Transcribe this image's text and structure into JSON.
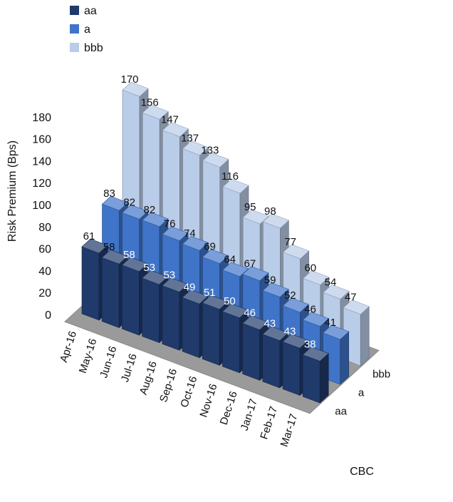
{
  "chart_data": {
    "type": "bar",
    "subtype": "3d-column",
    "title": "",
    "ylabel": "Risk Premium (Bps)",
    "zlabel": "CBC",
    "ylim": [
      0,
      180
    ],
    "yticks": [
      "0",
      "20",
      "40",
      "60",
      "80",
      "100",
      "120",
      "140",
      "160",
      "180"
    ],
    "categories": [
      "Apr-16",
      "May-16",
      "Jun-16",
      "Jul-16",
      "Aug-16",
      "Sep-16",
      "Oct-16",
      "Nov-16",
      "Dec-16",
      "Jan-17",
      "Feb-17",
      "Mar-17"
    ],
    "series": [
      {
        "name": "aa",
        "values": [
          61,
          58,
          58,
          53,
          53,
          49,
          51,
          50,
          46,
          43,
          43,
          38
        ],
        "color": "#1f3a6b"
      },
      {
        "name": "a",
        "values": [
          83,
          82,
          82,
          76,
          74,
          69,
          64,
          67,
          59,
          52,
          46,
          41
        ],
        "color": "#3f74c8"
      },
      {
        "name": "bbb",
        "values": [
          170,
          156,
          147,
          137,
          133,
          116,
          95,
          98,
          77,
          60,
          54,
          47
        ],
        "color": "#b9cce8"
      }
    ],
    "legend_position": "top-left",
    "grid": false
  }
}
